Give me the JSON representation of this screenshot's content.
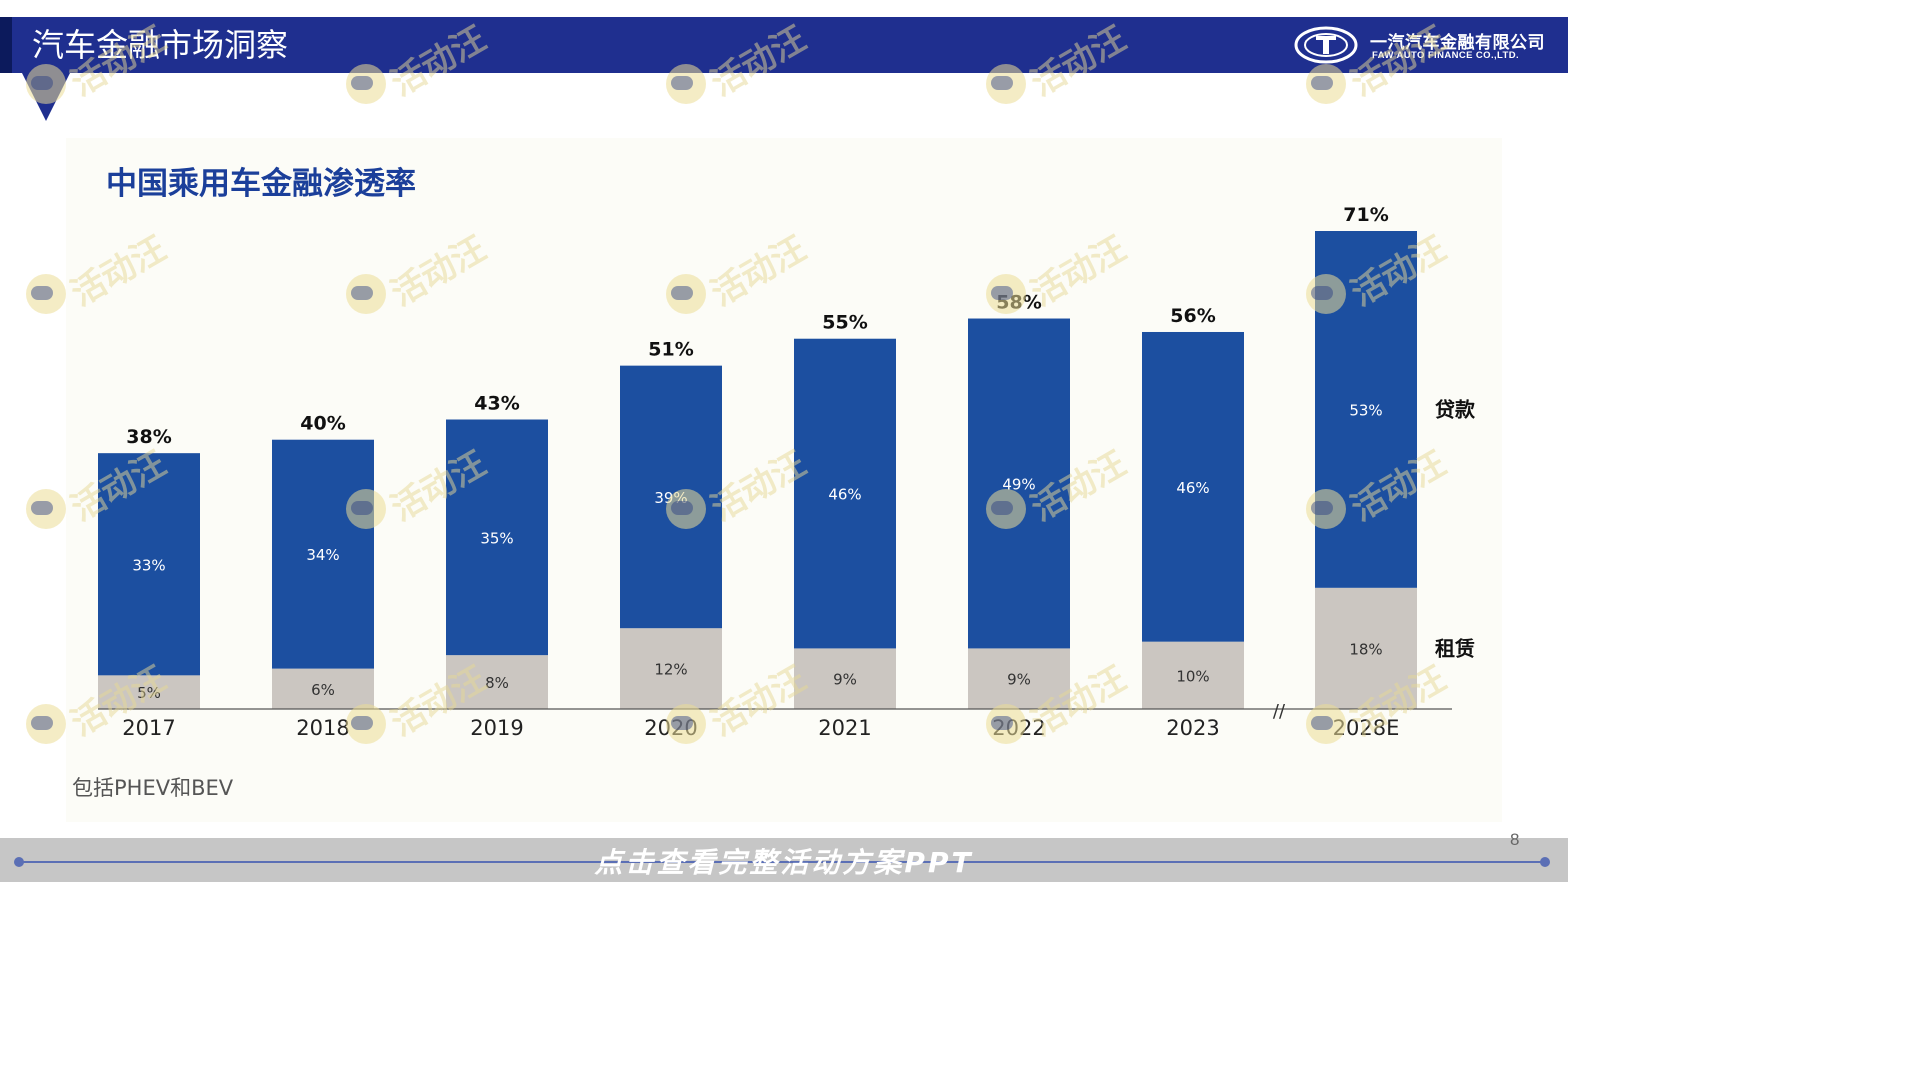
{
  "header": {
    "title": "汽车金融市场洞察",
    "logo_cn": "一汽汽车金融有限公司",
    "logo_en": "FAW AUTO FINANCE CO.,LTD."
  },
  "footnote": "包括PHEV和BEV",
  "footer": {
    "banner_text": "点击查看完整活动方案PPT",
    "page_number": "8"
  },
  "watermark_text": "活动汪",
  "colors": {
    "header": "#1f2f8f",
    "loan": "#1c4fa0",
    "lease": "#cbc6c1",
    "title": "#1b3f9a"
  },
  "chart_data": {
    "type": "bar",
    "stacked": true,
    "title": "中国乘用车金融渗透率",
    "categories": [
      "2017",
      "2018",
      "2019",
      "2020",
      "2021",
      "2022",
      "2023",
      "2028E"
    ],
    "series": [
      {
        "name": "租赁",
        "color": "#cbc6c1",
        "values": [
          5,
          6,
          8,
          12,
          9,
          9,
          10,
          18
        ],
        "labels": [
          "5%",
          "6%",
          "8%",
          "12%",
          "9%",
          "9%",
          "10%",
          "18%"
        ]
      },
      {
        "name": "贷款",
        "color": "#1c4fa0",
        "values": [
          33,
          34,
          35,
          39,
          46,
          49,
          46,
          53
        ],
        "labels": [
          "33%",
          "34%",
          "35%",
          "39%",
          "46%",
          "49%",
          "46%",
          "53%"
        ]
      }
    ],
    "totals": [
      "38%",
      "40%",
      "43%",
      "51%",
      "55%",
      "58%",
      "56%",
      "71%"
    ],
    "axis_break_before": "2028E",
    "axis_break_mark": "//",
    "ylim": [
      0,
      71
    ],
    "y_axis_visible": false,
    "grid": false,
    "legend": "right-of-last-bar"
  }
}
